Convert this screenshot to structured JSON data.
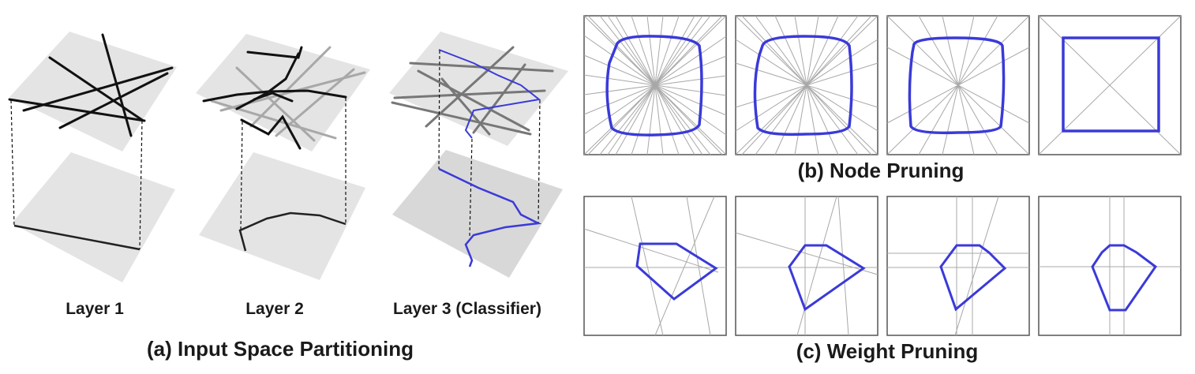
{
  "panel_a": {
    "caption": "(a) Input Space Partitioning",
    "layers": [
      {
        "label": "Layer 1"
      },
      {
        "label": "Layer 2"
      },
      {
        "label": "Layer 3 (Classifier)"
      }
    ]
  },
  "panel_b": {
    "caption": "(b) Node Pruning"
  },
  "panel_c": {
    "caption": "(c) Weight Pruning"
  },
  "colors": {
    "boundary": "#3a3ad9",
    "plane": "#e4e4e4",
    "line_dark": "#111111",
    "line_gray": "#a8a8a8",
    "frame": "#555555"
  }
}
